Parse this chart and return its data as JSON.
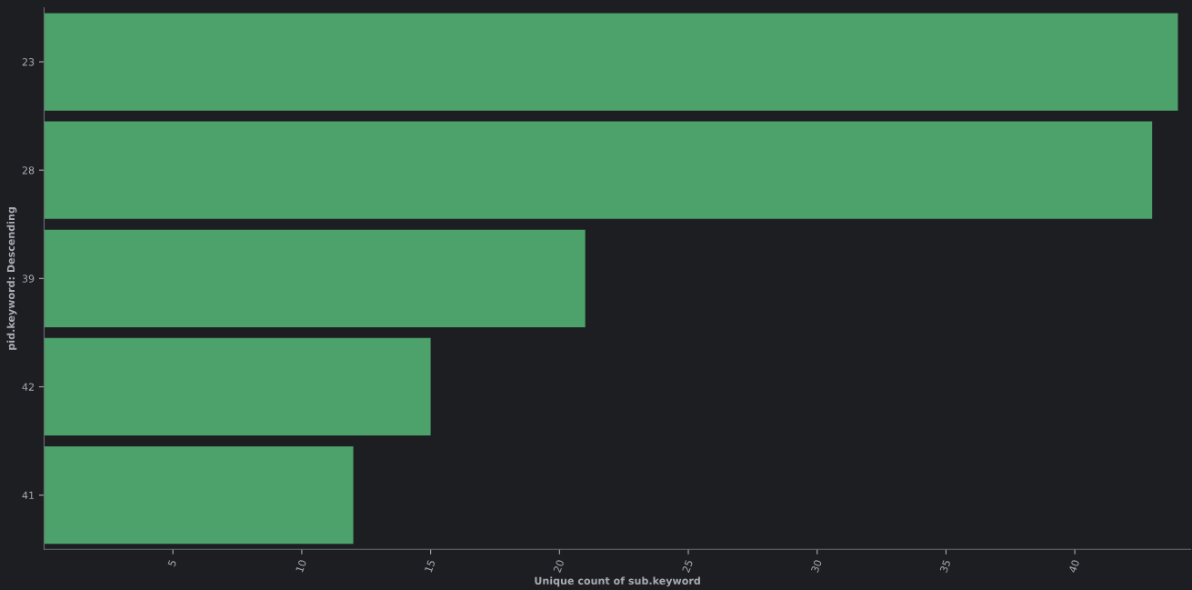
{
  "chart_data": {
    "type": "bar",
    "orientation": "horizontal",
    "categories": [
      "23",
      "28",
      "39",
      "42",
      "41"
    ],
    "values": [
      44,
      43,
      21,
      15,
      12
    ],
    "color": "#4ca26a",
    "xlabel": "Unique count of sub.keyword",
    "ylabel": "pid.keyword: Descending",
    "xlim": [
      0,
      44.5
    ],
    "xticks": [
      5,
      10,
      15,
      20,
      25,
      30,
      35,
      40
    ],
    "grid": false,
    "legend": false
  }
}
